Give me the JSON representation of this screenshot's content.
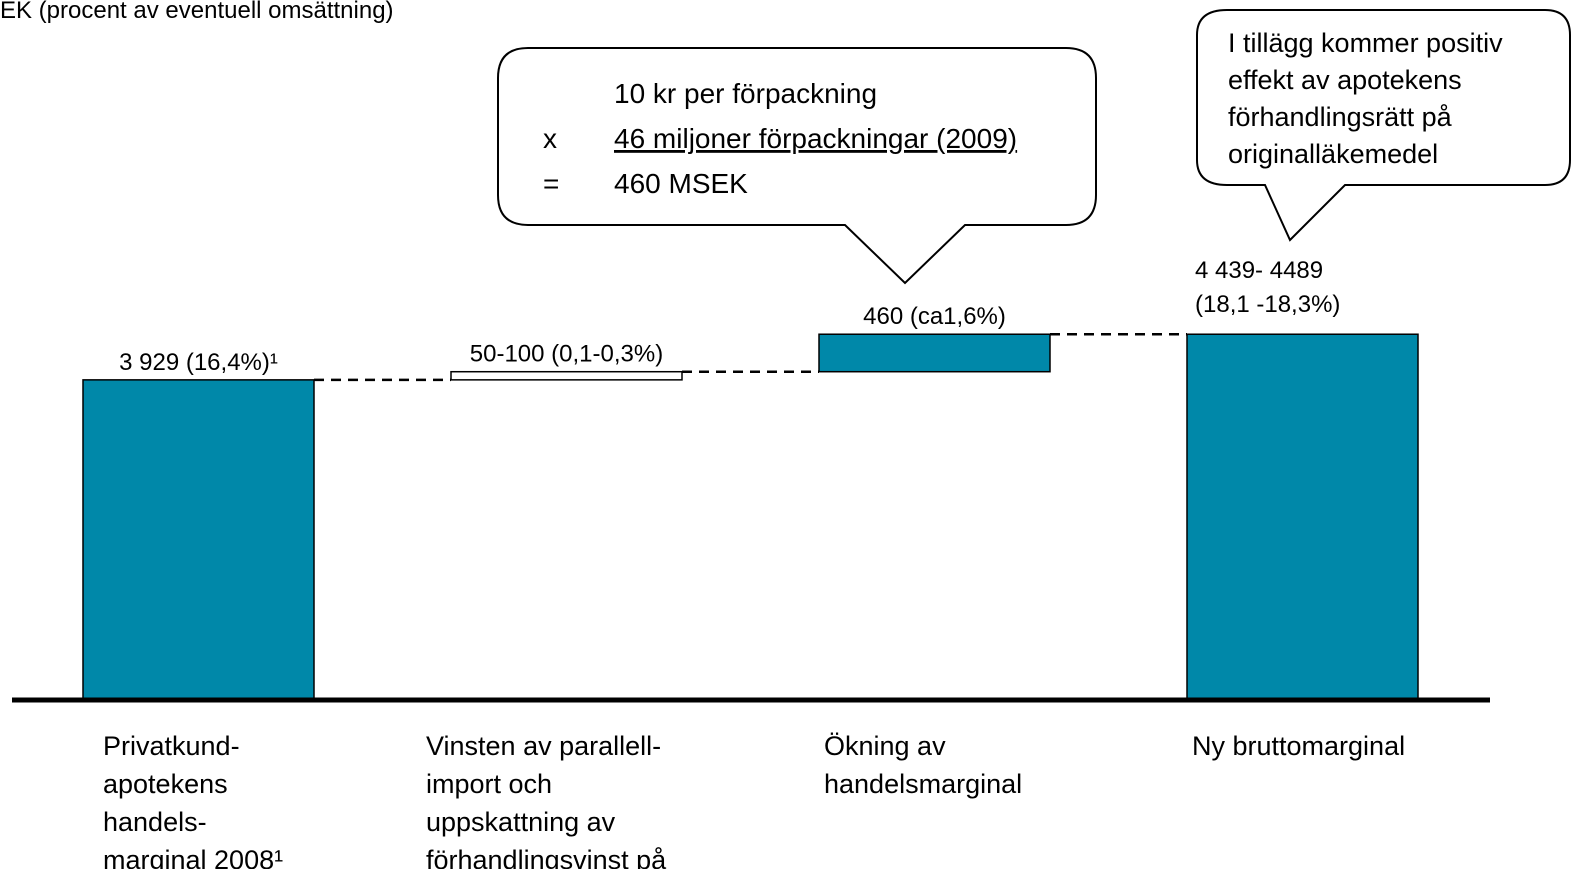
{
  "chart_data": {
    "type": "waterfall",
    "title": "EK (procent av eventuell omsättning)",
    "categories": [
      [
        "Privatkund-",
        "apotekens",
        "handels-",
        "marginal 2008¹"
      ],
      [
        "Vinsten av parallell-",
        "import och",
        "uppskattning av",
        "förhandlingsvinst på"
      ],
      [
        "Ökning av",
        "handelsmarginal"
      ],
      [
        "Ny bruttomarginal"
      ]
    ],
    "values": [
      3929,
      100,
      460,
      4489
    ],
    "value_labels": [
      "3 929 (16,4%)¹",
      "50-100 (0,1-0,3%)",
      "460 (ca1,6%)",
      [
        "4 439- 4489",
        "(18,1 -18,3%)"
      ]
    ],
    "is_total": [
      false,
      false,
      false,
      true
    ],
    "colors": [
      "#0088a9",
      "#ffffff",
      "#0088a9",
      "#0088a9"
    ],
    "ylim": [
      0,
      8100
    ],
    "callouts": [
      {
        "rows": [
          {
            "text": "10 kr per förpackning"
          },
          {
            "symbol": "x",
            "text": "46 miljoner förpackningar (2009)",
            "underline": true
          },
          {
            "symbol": "=",
            "text": "460 MSEK"
          }
        ]
      },
      {
        "lines": [
          "I tillägg kommer positiv",
          "effekt av apotekens",
          "förhandlingsrätt på",
          "originalläkemedel"
        ]
      }
    ]
  }
}
